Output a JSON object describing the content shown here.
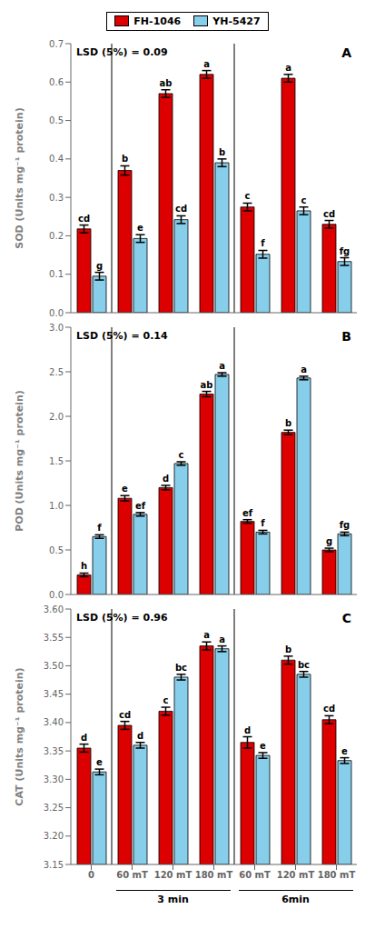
{
  "chart_data": [
    {
      "type": "bar",
      "ylabel": "SOD (Units mg⁻¹ protein)",
      "categories": [
        "0",
        "60 mT",
        "120 mT",
        "180 mT",
        "60 mT",
        "120 mT",
        "180 mT"
      ],
      "series": [
        {
          "name": "FH-1046",
          "color": "#DD0000",
          "values": [
            0.218,
            0.37,
            0.57,
            0.62,
            0.275,
            0.61,
            0.23
          ],
          "errors": [
            0.01,
            0.012,
            0.01,
            0.01,
            0.01,
            0.01,
            0.01
          ],
          "labels": [
            "cd",
            "b",
            "ab",
            "a",
            "c",
            "a",
            "cd"
          ]
        },
        {
          "name": "YH-5427",
          "color": "#87CEEB",
          "values": [
            0.095,
            0.193,
            0.242,
            0.39,
            0.152,
            0.265,
            0.133
          ],
          "errors": [
            0.01,
            0.01,
            0.01,
            0.01,
            0.01,
            0.01,
            0.01
          ],
          "labels": [
            "g",
            "e",
            "cd",
            "b",
            "f",
            "c",
            "fg"
          ]
        }
      ],
      "ylim": [
        0,
        0.7
      ],
      "yticks": [
        {
          "value": 0,
          "label": "0.0"
        },
        0.1,
        0.2,
        0.3,
        0.4,
        0.5,
        0.6,
        0.7
      ],
      "grid": false,
      "tick_labels": "y",
      "legend": "top",
      "annotations": [
        "LSD (5%) = 0.09",
        "A"
      ]
    },
    {
      "type": "bar",
      "ylabel": "POD (Units mg⁻¹ protein)",
      "categories": [
        "0",
        "60 mT",
        "120 mT",
        "180 mT",
        "60 mT",
        "120 mT",
        "180 mT"
      ],
      "series": [
        {
          "name": "FH-1046",
          "color": "#DD0000",
          "values": [
            0.22,
            1.08,
            1.2,
            2.25,
            0.82,
            1.82,
            0.5
          ],
          "errors": [
            0.02,
            0.03,
            0.025,
            0.03,
            0.02,
            0.025,
            0.02
          ],
          "labels": [
            "h",
            "e",
            "d",
            "ab",
            "ef",
            "b",
            "g"
          ]
        },
        {
          "name": "YH-5427",
          "color": "#87CEEB",
          "values": [
            0.65,
            0.9,
            1.47,
            2.47,
            0.7,
            2.43,
            0.68
          ],
          "errors": [
            0.02,
            0.02,
            0.02,
            0.02,
            0.02,
            0.02,
            0.02
          ],
          "labels": [
            "f",
            "ef",
            "c",
            "a",
            "f",
            "a",
            "fg"
          ]
        }
      ],
      "ylim": [
        0,
        3
      ],
      "yticks": [
        {
          "value": 0,
          "label": "0.0"
        },
        0.5,
        {
          "value": 1,
          "label": "1.0"
        },
        1.5,
        {
          "value": 2,
          "label": "2.0"
        },
        2.5,
        {
          "value": 3,
          "label": "3.0"
        }
      ],
      "grid": false,
      "tick_labels": "y",
      "annotations": [
        "LSD (5%) = 0.14",
        "B"
      ]
    },
    {
      "type": "bar",
      "ylabel": "CAT (Units mg⁻¹ protein)",
      "categories": [
        "0",
        "60 mT",
        "120 mT",
        "180 mT",
        "60 mT",
        "120 mT",
        "180 mT"
      ],
      "series": [
        {
          "name": "FH-1046",
          "color": "#DD0000",
          "values": [
            3.355,
            3.395,
            3.42,
            3.535,
            3.365,
            3.51,
            3.405
          ],
          "errors": [
            0.007,
            0.007,
            0.007,
            0.007,
            0.01,
            0.007,
            0.007
          ],
          "labels": [
            "d",
            "cd",
            "c",
            "a",
            "d",
            "b",
            "cd"
          ]
        },
        {
          "name": "YH-5427",
          "color": "#87CEEB",
          "values": [
            3.313,
            3.36,
            3.48,
            3.53,
            3.342,
            3.485,
            3.333
          ],
          "errors": [
            0.005,
            0.005,
            0.005,
            0.005,
            0.005,
            0.005,
            0.005
          ],
          "labels": [
            "e",
            "d",
            "bc",
            "a",
            "e",
            "bc",
            "e"
          ]
        }
      ],
      "ylim": [
        3.15,
        3.6
      ],
      "yticks": [
        3.15,
        {
          "value": 3.2,
          "label": "3.20"
        },
        3.25,
        {
          "value": 3.3,
          "label": "3.30"
        },
        3.35,
        {
          "value": 3.4,
          "label": "3.40"
        },
        3.45,
        {
          "value": 3.5,
          "label": "3.50"
        },
        3.55,
        {
          "value": 3.6,
          "label": "3.60"
        }
      ],
      "grid": false,
      "annotations": [
        "LSD (5%) = 0.96",
        "C"
      ],
      "group_labels": [
        "3 min",
        "6min"
      ]
    }
  ]
}
